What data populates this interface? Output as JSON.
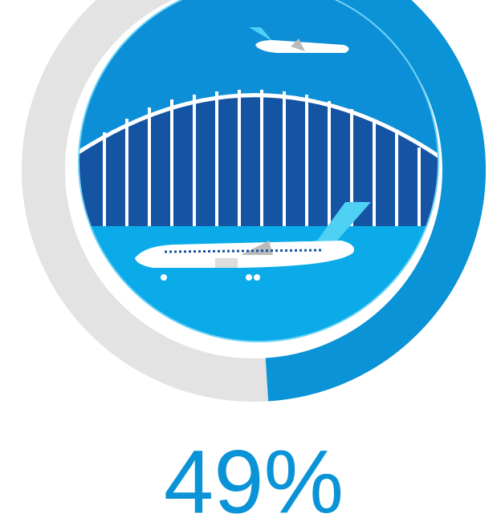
{
  "chart_data": {
    "type": "progress-ring",
    "values": [
      49
    ],
    "value_labels": [
      "49%"
    ],
    "ylim": [
      0,
      100
    ],
    "color": "#0a93d6",
    "track_color": "#e3e3e3"
  }
}
